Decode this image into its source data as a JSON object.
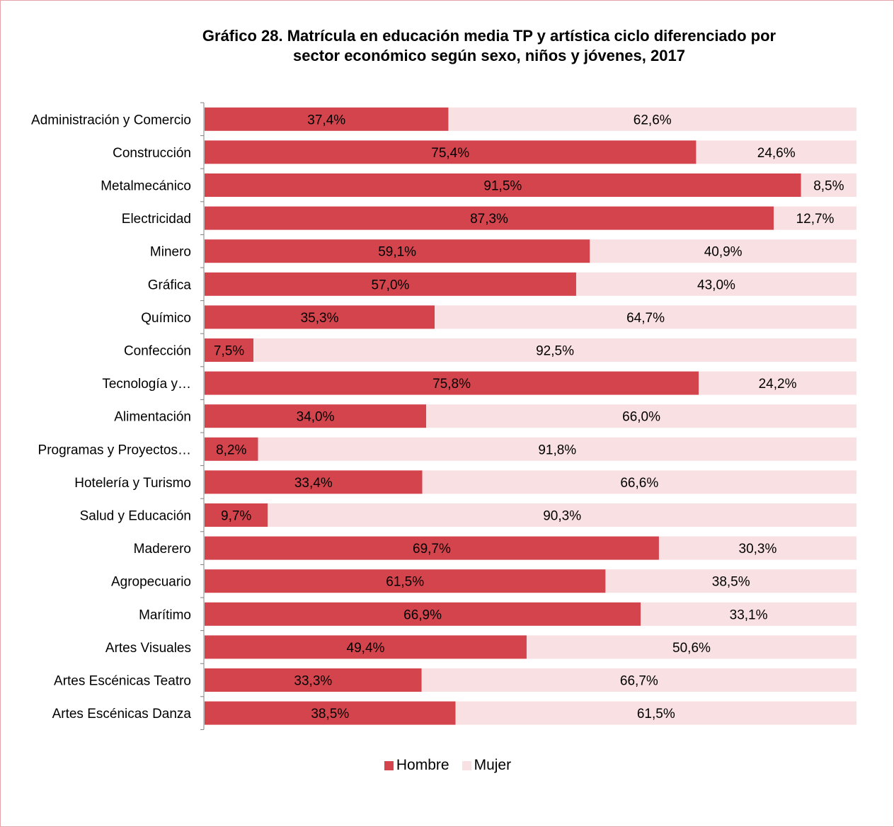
{
  "chart_data": {
    "type": "bar",
    "orientation": "horizontal",
    "stacked": "percent",
    "title_lines": [
      "Gráfico 28. Matrícula en educación media TP y artística ciclo diferenciado por",
      "sector económico según sexo, niños y jóvenes, 2017"
    ],
    "categories": [
      "Administración y Comercio",
      "Construcción",
      "Metalmecánico",
      "Electricidad",
      "Minero",
      "Gráfica",
      "Químico",
      "Confección",
      "Tecnología y…",
      "Alimentación",
      "Programas y Proyectos…",
      "Hotelería y Turismo",
      "Salud y Educación",
      "Maderero",
      "Agropecuario",
      "Marítimo",
      "Artes Visuales",
      "Artes Escénicas Teatro",
      "Artes Escénicas Danza"
    ],
    "series": [
      {
        "name": "Hombre",
        "color": "#d4444c",
        "values": [
          37.4,
          75.4,
          91.5,
          87.3,
          59.1,
          57.0,
          35.3,
          7.5,
          75.8,
          34.0,
          8.2,
          33.4,
          9.7,
          69.7,
          61.5,
          66.9,
          49.4,
          33.3,
          38.5
        ],
        "labels": [
          "37,4%",
          "75,4%",
          "91,5%",
          "87,3%",
          "59,1%",
          "57,0%",
          "35,3%",
          "7,5%",
          "75,8%",
          "34,0%",
          "8,2%",
          "33,4%",
          "9,7%",
          "69,7%",
          "61,5%",
          "66,9%",
          "49,4%",
          "33,3%",
          "38,5%"
        ]
      },
      {
        "name": "Mujer",
        "color": "#f9e0e2",
        "values": [
          62.6,
          24.6,
          8.5,
          12.7,
          40.9,
          43.0,
          64.7,
          92.5,
          24.2,
          66.0,
          91.8,
          66.6,
          90.3,
          30.3,
          38.5,
          33.1,
          50.6,
          66.7,
          61.5
        ],
        "labels": [
          "62,6%",
          "24,6%",
          "8,5%",
          "12,7%",
          "40,9%",
          "43,0%",
          "64,7%",
          "92,5%",
          "24,2%",
          "66,0%",
          "91,8%",
          "66,6%",
          "90,3%",
          "30,3%",
          "38,5%",
          "33,1%",
          "50,6%",
          "66,7%",
          "61,5%"
        ]
      }
    ],
    "xlim": [
      0,
      100
    ],
    "grid": false,
    "legend_position": "bottom"
  }
}
